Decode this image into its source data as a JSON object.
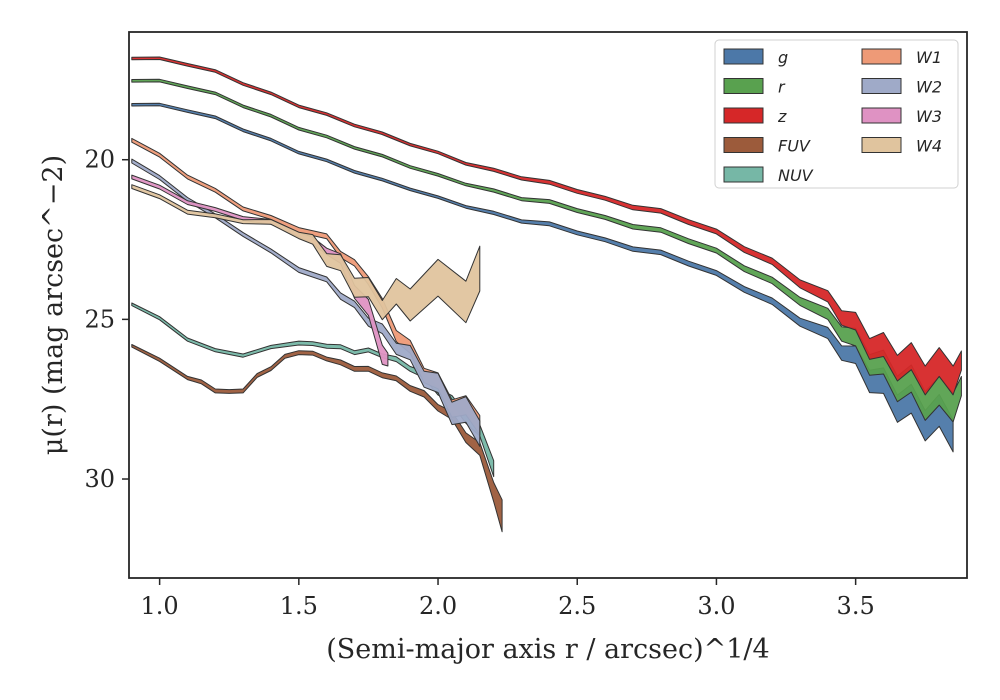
{
  "chart_data": {
    "type": "area",
    "xlabel": "(Semi-major axis r / arcsec)^1/4",
    "ylabel": "μ(r) (mag arcsec^−2)",
    "xlim": [
      0.89,
      3.9
    ],
    "ylim": [
      33.1,
      16.0
    ],
    "y_inverted": true,
    "x_ticks": [
      1.0,
      1.5,
      2.0,
      2.5,
      3.0,
      3.5
    ],
    "x_tick_labels": [
      "1.0",
      "1.5",
      "2.0",
      "2.5",
      "3.0",
      "3.5"
    ],
    "y_ticks": [
      20,
      25,
      30
    ],
    "y_tick_labels": [
      "20",
      "25",
      "30"
    ],
    "grid": false,
    "legend_position": "top-right",
    "legend_columns": 2,
    "series": [
      {
        "name": "g",
        "color": "#4c78a8",
        "x": [
          0.9,
          1.0,
          1.1,
          1.2,
          1.3,
          1.4,
          1.5,
          1.6,
          1.7,
          1.8,
          1.9,
          2.0,
          2.1,
          2.2,
          2.3,
          2.4,
          2.5,
          2.6,
          2.7,
          2.8,
          2.9,
          3.0,
          3.1,
          3.2,
          3.3,
          3.4,
          3.45,
          3.5,
          3.55,
          3.6,
          3.65,
          3.7,
          3.75,
          3.8,
          3.85
        ],
        "y": [
          18.25,
          18.3,
          18.45,
          18.7,
          19.05,
          19.4,
          19.75,
          20.05,
          20.35,
          20.65,
          20.9,
          21.2,
          21.45,
          21.7,
          21.9,
          22.05,
          22.25,
          22.55,
          22.75,
          22.95,
          23.2,
          23.6,
          24.0,
          24.5,
          25.0,
          25.55,
          25.9,
          26.3,
          26.7,
          27.2,
          27.5,
          27.8,
          28.0,
          28.2,
          28.3
        ],
        "spread": [
          0.08,
          0.08,
          0.08,
          0.08,
          0.08,
          0.08,
          0.08,
          0.08,
          0.08,
          0.08,
          0.08,
          0.08,
          0.08,
          0.1,
          0.1,
          0.12,
          0.12,
          0.12,
          0.14,
          0.14,
          0.15,
          0.15,
          0.18,
          0.2,
          0.25,
          0.35,
          0.45,
          0.55,
          0.7,
          0.8,
          0.85,
          0.9,
          0.95,
          1.0,
          1.0
        ]
      },
      {
        "name": "r",
        "color": "#59a14f",
        "x": [
          0.9,
          1.0,
          1.1,
          1.2,
          1.3,
          1.4,
          1.5,
          1.6,
          1.7,
          1.8,
          1.9,
          2.0,
          2.1,
          2.2,
          2.3,
          2.4,
          2.5,
          2.6,
          2.7,
          2.8,
          2.9,
          3.0,
          3.1,
          3.2,
          3.3,
          3.4,
          3.45,
          3.5,
          3.55,
          3.6,
          3.65,
          3.7,
          3.75,
          3.8,
          3.85,
          3.88
        ],
        "y": [
          17.5,
          17.55,
          17.7,
          17.95,
          18.3,
          18.65,
          19.0,
          19.3,
          19.6,
          19.9,
          20.2,
          20.5,
          20.75,
          21.0,
          21.2,
          21.35,
          21.55,
          21.85,
          22.05,
          22.25,
          22.5,
          22.9,
          23.35,
          23.85,
          24.35,
          24.95,
          25.3,
          25.75,
          26.2,
          26.6,
          26.9,
          27.15,
          27.4,
          27.55,
          27.45,
          27.3
        ],
        "spread": [
          0.08,
          0.08,
          0.08,
          0.08,
          0.08,
          0.08,
          0.08,
          0.08,
          0.08,
          0.08,
          0.08,
          0.08,
          0.08,
          0.1,
          0.1,
          0.12,
          0.12,
          0.12,
          0.14,
          0.14,
          0.15,
          0.15,
          0.18,
          0.2,
          0.25,
          0.35,
          0.45,
          0.55,
          0.65,
          0.75,
          0.8,
          0.85,
          0.9,
          0.9,
          0.9,
          0.6
        ]
      },
      {
        "name": "z",
        "color": "#d62728",
        "x": [
          0.9,
          1.0,
          1.1,
          1.2,
          1.3,
          1.4,
          1.5,
          1.6,
          1.7,
          1.8,
          1.9,
          2.0,
          2.1,
          2.2,
          2.3,
          2.4,
          2.5,
          2.6,
          2.7,
          2.8,
          2.9,
          3.0,
          3.1,
          3.2,
          3.3,
          3.4,
          3.45,
          3.5,
          3.55,
          3.6,
          3.65,
          3.7,
          3.75,
          3.8,
          3.85,
          3.88
        ],
        "y": [
          16.8,
          16.85,
          17.0,
          17.25,
          17.6,
          17.95,
          18.3,
          18.6,
          18.9,
          19.2,
          19.5,
          19.8,
          20.1,
          20.35,
          20.55,
          20.75,
          20.95,
          21.25,
          21.45,
          21.65,
          21.9,
          22.3,
          22.75,
          23.25,
          23.8,
          24.4,
          24.8,
          25.25,
          25.7,
          26.05,
          26.25,
          26.45,
          26.6,
          26.65,
          26.6,
          26.5
        ],
        "spread": [
          0.08,
          0.08,
          0.08,
          0.08,
          0.08,
          0.08,
          0.08,
          0.08,
          0.08,
          0.08,
          0.08,
          0.08,
          0.08,
          0.1,
          0.1,
          0.12,
          0.12,
          0.12,
          0.14,
          0.14,
          0.15,
          0.15,
          0.18,
          0.2,
          0.25,
          0.35,
          0.45,
          0.55,
          0.65,
          0.75,
          0.8,
          0.85,
          0.9,
          0.9,
          0.9,
          0.6
        ]
      },
      {
        "name": "FUV",
        "color": "#9c5b3b",
        "x": [
          0.9,
          1.0,
          1.1,
          1.15,
          1.2,
          1.25,
          1.3,
          1.35,
          1.4,
          1.45,
          1.5,
          1.55,
          1.6,
          1.65,
          1.7,
          1.75,
          1.8,
          1.85,
          1.9,
          1.95,
          2.0,
          2.05,
          2.1,
          2.15,
          2.2,
          2.23
        ],
        "y": [
          25.8,
          26.3,
          26.8,
          27.0,
          27.2,
          27.3,
          27.2,
          26.8,
          26.5,
          26.2,
          26.0,
          26.1,
          26.2,
          26.4,
          26.5,
          26.6,
          26.7,
          26.9,
          27.1,
          27.4,
          27.7,
          28.1,
          28.6,
          29.2,
          30.2,
          31.5
        ],
        "spread": [
          0.08,
          0.1,
          0.1,
          0.12,
          0.12,
          0.12,
          0.12,
          0.12,
          0.12,
          0.12,
          0.12,
          0.12,
          0.12,
          0.15,
          0.15,
          0.15,
          0.15,
          0.15,
          0.18,
          0.2,
          0.2,
          0.25,
          0.3,
          0.4,
          0.6,
          1.0
        ]
      },
      {
        "name": "NUV",
        "color": "#76b7a6",
        "x": [
          0.9,
          1.0,
          1.1,
          1.2,
          1.3,
          1.4,
          1.5,
          1.55,
          1.6,
          1.65,
          1.7,
          1.75,
          1.8,
          1.85,
          1.9,
          1.95,
          2.0,
          2.05,
          2.1,
          2.15,
          2.2
        ],
        "y": [
          24.5,
          25.0,
          25.6,
          26.0,
          26.1,
          25.9,
          25.7,
          25.8,
          25.8,
          25.9,
          26.0,
          26.0,
          26.1,
          26.3,
          26.5,
          26.8,
          27.2,
          27.6,
          28.0,
          28.6,
          29.5
        ],
        "spread": [
          0.08,
          0.1,
          0.1,
          0.1,
          0.1,
          0.1,
          0.12,
          0.12,
          0.12,
          0.12,
          0.12,
          0.12,
          0.12,
          0.15,
          0.15,
          0.2,
          0.2,
          0.25,
          0.3,
          0.35,
          0.5
        ]
      },
      {
        "name": "W1",
        "color": "#ee9a77",
        "x": [
          0.9,
          1.0,
          1.1,
          1.2,
          1.3,
          1.4,
          1.5,
          1.6,
          1.65,
          1.7,
          1.75,
          1.8,
          1.85,
          1.9,
          1.95,
          2.0,
          2.05,
          2.1,
          2.15
        ],
        "y": [
          19.35,
          19.9,
          20.5,
          21.0,
          21.5,
          21.85,
          22.15,
          22.45,
          22.9,
          23.3,
          23.7,
          24.6,
          25.4,
          26.0,
          26.6,
          27.1,
          27.6,
          27.9,
          28.1
        ],
        "spread": [
          0.12,
          0.12,
          0.12,
          0.12,
          0.12,
          0.12,
          0.15,
          0.15,
          0.2,
          0.2,
          0.25,
          0.3,
          0.35,
          0.4,
          0.45,
          0.5,
          0.55,
          0.6,
          0.6
        ]
      },
      {
        "name": "W2",
        "color": "#9faac8",
        "x": [
          0.9,
          1.0,
          1.1,
          1.2,
          1.3,
          1.4,
          1.5,
          1.6,
          1.65,
          1.7,
          1.75,
          1.8,
          1.85,
          1.9,
          1.95,
          2.0,
          2.05,
          2.1,
          2.15
        ],
        "y": [
          20.0,
          20.6,
          21.2,
          21.8,
          22.3,
          22.9,
          23.4,
          23.8,
          24.2,
          24.6,
          25.0,
          25.4,
          25.8,
          26.2,
          26.7,
          27.2,
          27.7,
          28.1,
          28.3
        ],
        "spread": [
          0.12,
          0.12,
          0.12,
          0.12,
          0.12,
          0.12,
          0.15,
          0.15,
          0.2,
          0.2,
          0.25,
          0.3,
          0.35,
          0.45,
          0.5,
          0.6,
          0.7,
          0.8,
          0.8
        ]
      },
      {
        "name": "W3",
        "color": "#df92c3",
        "x": [
          0.9,
          1.0,
          1.1,
          1.2,
          1.3,
          1.4,
          1.5,
          1.55,
          1.6,
          1.65,
          1.7,
          1.75,
          1.8,
          1.82
        ],
        "y": [
          20.5,
          20.9,
          21.3,
          21.6,
          21.8,
          22.0,
          22.3,
          22.6,
          22.8,
          23.2,
          24.0,
          24.8,
          25.9,
          26.4
        ],
        "spread": [
          0.12,
          0.12,
          0.12,
          0.12,
          0.12,
          0.15,
          0.15,
          0.2,
          0.2,
          0.3,
          0.4,
          0.5,
          0.6,
          0.4
        ]
      },
      {
        "name": "W4",
        "color": "#e0c49e",
        "x": [
          0.9,
          1.0,
          1.1,
          1.2,
          1.3,
          1.4,
          1.5,
          1.55,
          1.6,
          1.65,
          1.7,
          1.75,
          1.8,
          1.85,
          1.9,
          2.0,
          2.1,
          2.15
        ],
        "y": [
          20.8,
          21.2,
          21.6,
          21.8,
          21.9,
          22.0,
          22.3,
          22.6,
          23.0,
          23.4,
          23.8,
          24.2,
          24.5,
          24.4,
          24.2,
          24.1,
          24.0,
          23.9
        ],
        "spread": [
          0.12,
          0.12,
          0.12,
          0.12,
          0.12,
          0.15,
          0.2,
          0.3,
          0.4,
          0.5,
          0.6,
          0.6,
          0.6,
          0.8,
          1.0,
          1.15,
          1.3,
          1.4
        ]
      }
    ]
  }
}
